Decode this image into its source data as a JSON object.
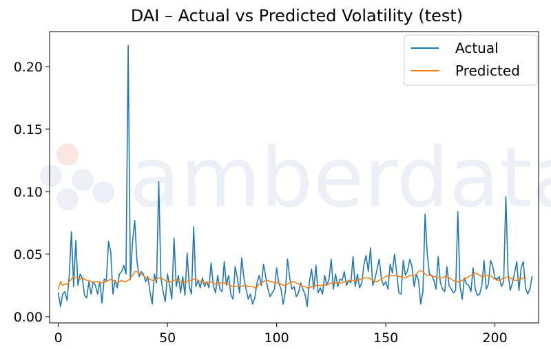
{
  "chart_data": {
    "type": "line",
    "title": "DAI – Actual vs Predicted Volatility (test)",
    "xlabel": "",
    "ylabel": "",
    "xlim": [
      -4,
      220
    ],
    "ylim": [
      -0.005,
      0.228
    ],
    "xticks": [
      0,
      50,
      100,
      150,
      200
    ],
    "xtick_labels": [
      "0",
      "50",
      "100",
      "150",
      "200"
    ],
    "yticks": [
      0.0,
      0.05,
      0.1,
      0.15,
      0.2
    ],
    "ytick_labels": [
      "0.00",
      "0.05",
      "0.10",
      "0.15",
      "0.20"
    ],
    "grid": false,
    "legend_position": "top-right",
    "watermark": "amberdata",
    "series": [
      {
        "name": "Actual",
        "color": "#1f77b4",
        "x_start": 0,
        "values": [
          0.019,
          0.008,
          0.018,
          0.02,
          0.013,
          0.033,
          0.068,
          0.024,
          0.061,
          0.025,
          0.034,
          0.031,
          0.017,
          0.015,
          0.028,
          0.018,
          0.028,
          0.025,
          0.018,
          0.028,
          0.011,
          0.03,
          0.029,
          0.06,
          0.052,
          0.018,
          0.029,
          0.023,
          0.034,
          0.036,
          0.041,
          0.034,
          0.217,
          0.03,
          0.06,
          0.077,
          0.045,
          0.032,
          0.036,
          0.034,
          0.028,
          0.032,
          0.02,
          0.01,
          0.034,
          0.027,
          0.108,
          0.031,
          0.02,
          0.012,
          0.034,
          0.025,
          0.014,
          0.063,
          0.024,
          0.033,
          0.019,
          0.032,
          0.017,
          0.051,
          0.024,
          0.018,
          0.072,
          0.024,
          0.029,
          0.023,
          0.031,
          0.024,
          0.028,
          0.023,
          0.043,
          0.025,
          0.019,
          0.033,
          0.022,
          0.02,
          0.044,
          0.025,
          0.033,
          0.018,
          0.014,
          0.04,
          0.031,
          0.019,
          0.047,
          0.031,
          0.022,
          0.014,
          0.018,
          0.01,
          0.015,
          0.027,
          0.033,
          0.025,
          0.042,
          0.032,
          0.022,
          0.016,
          0.019,
          0.022,
          0.039,
          0.027,
          0.022,
          0.01,
          0.02,
          0.046,
          0.031,
          0.022,
          0.024,
          0.016,
          0.019,
          0.027,
          0.022,
          0.018,
          0.008,
          0.028,
          0.038,
          0.022,
          0.041,
          0.019,
          0.023,
          0.018,
          0.033,
          0.025,
          0.03,
          0.046,
          0.022,
          0.034,
          0.024,
          0.03,
          0.029,
          0.036,
          0.025,
          0.029,
          0.027,
          0.048,
          0.024,
          0.034,
          0.023,
          0.027,
          0.042,
          0.049,
          0.036,
          0.055,
          0.025,
          0.03,
          0.038,
          0.046,
          0.03,
          0.025,
          0.028,
          0.022,
          0.042,
          0.035,
          0.05,
          0.035,
          0.019,
          0.018,
          0.045,
          0.033,
          0.037,
          0.046,
          0.04,
          0.024,
          0.034,
          0.029,
          0.01,
          0.02,
          0.082,
          0.05,
          0.034,
          0.033,
          0.029,
          0.022,
          0.048,
          0.027,
          0.022,
          0.02,
          0.04,
          0.025,
          0.022,
          0.019,
          0.021,
          0.084,
          0.024,
          0.014,
          0.031,
          0.026,
          0.025,
          0.02,
          0.039,
          0.022,
          0.017,
          0.018,
          0.025,
          0.045,
          0.022,
          0.026,
          0.045,
          0.04,
          0.031,
          0.03,
          0.032,
          0.024,
          0.028,
          0.096,
          0.035,
          0.021,
          0.027,
          0.035,
          0.044,
          0.021,
          0.039,
          0.044,
          0.023,
          0.018,
          0.022,
          0.032
        ]
      },
      {
        "name": "Predicted",
        "color": "#ff7f0e",
        "x_start": 0,
        "values": [
          0.022,
          0.028,
          0.025,
          0.026,
          0.026,
          0.028,
          0.03,
          0.032,
          0.031,
          0.031,
          0.03,
          0.031,
          0.03,
          0.029,
          0.029,
          0.028,
          0.027,
          0.028,
          0.028,
          0.027,
          0.027,
          0.028,
          0.028,
          0.029,
          0.03,
          0.029,
          0.028,
          0.027,
          0.028,
          0.029,
          0.028,
          0.028,
          0.029,
          0.031,
          0.033,
          0.036,
          0.036,
          0.035,
          0.034,
          0.033,
          0.031,
          0.031,
          0.03,
          0.029,
          0.029,
          0.03,
          0.031,
          0.031,
          0.03,
          0.029,
          0.028,
          0.028,
          0.028,
          0.029,
          0.03,
          0.029,
          0.028,
          0.028,
          0.027,
          0.028,
          0.029,
          0.029,
          0.03,
          0.03,
          0.029,
          0.028,
          0.028,
          0.027,
          0.027,
          0.027,
          0.028,
          0.027,
          0.026,
          0.026,
          0.027,
          0.027,
          0.027,
          0.026,
          0.026,
          0.025,
          0.024,
          0.024,
          0.024,
          0.024,
          0.024,
          0.025,
          0.025,
          0.024,
          0.024,
          0.024,
          0.023,
          0.024,
          0.026,
          0.027,
          0.028,
          0.029,
          0.029,
          0.028,
          0.028,
          0.027,
          0.027,
          0.027,
          0.026,
          0.025,
          0.025,
          0.026,
          0.027,
          0.028,
          0.028,
          0.027,
          0.026,
          0.025,
          0.024,
          0.024,
          0.023,
          0.023,
          0.024,
          0.024,
          0.025,
          0.025,
          0.025,
          0.025,
          0.025,
          0.026,
          0.026,
          0.027,
          0.027,
          0.027,
          0.027,
          0.027,
          0.027,
          0.028,
          0.028,
          0.029,
          0.029,
          0.029,
          0.029,
          0.029,
          0.03,
          0.03,
          0.031,
          0.031,
          0.031,
          0.03,
          0.029,
          0.028,
          0.028,
          0.029,
          0.03,
          0.031,
          0.032,
          0.033,
          0.033,
          0.033,
          0.033,
          0.033,
          0.032,
          0.032,
          0.031,
          0.031,
          0.032,
          0.033,
          0.033,
          0.033,
          0.034,
          0.036,
          0.037,
          0.036,
          0.034,
          0.033,
          0.033,
          0.033,
          0.032,
          0.032,
          0.031,
          0.031,
          0.031,
          0.032,
          0.032,
          0.031,
          0.03,
          0.029,
          0.028,
          0.028,
          0.028,
          0.029,
          0.03,
          0.031,
          0.032,
          0.033,
          0.034,
          0.035,
          0.034,
          0.033,
          0.032,
          0.032,
          0.033,
          0.033,
          0.033,
          0.031,
          0.03,
          0.029,
          0.029,
          0.03,
          0.031,
          0.031,
          0.032,
          0.031,
          0.03,
          0.029,
          0.029,
          0.03,
          0.03,
          0.031,
          0.031
        ]
      }
    ]
  }
}
